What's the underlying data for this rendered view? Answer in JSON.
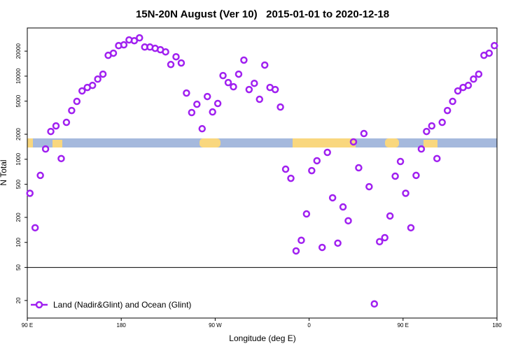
{
  "chart_data": {
    "type": "scatter",
    "title": "15N-20N August (Ver 10)   2015-01-01 to 2020-12-18",
    "x_label": "Longitude (deg E)",
    "y_label": "N Total",
    "x": [
      92.5,
      97.5,
      102.5,
      107.5,
      112.5,
      117.5,
      122.5,
      127.5,
      132.5,
      137.5,
      142.5,
      147.5,
      152.5,
      157.5,
      162.5,
      167.5,
      172.5,
      177.5,
      182.5,
      187.5,
      192.5,
      197.5,
      202.5,
      207.5,
      212.5,
      217.5,
      222.5,
      227.5,
      232.5,
      237.5,
      242.5,
      247.5,
      252.5,
      257.5,
      262.5,
      267.5,
      272.5,
      277.5,
      282.5,
      287.5,
      292.5,
      297.5,
      302.5,
      307.5,
      312.5,
      317.5,
      322.5,
      327.5,
      332.5,
      337.5,
      342.5,
      347.5,
      352.5,
      357.5,
      362.5,
      367.5,
      372.5,
      377.5,
      382.5,
      387.5,
      392.5,
      397.5,
      402.5,
      407.5,
      412.5,
      417.5,
      422.5,
      427.5,
      432.5,
      437.5,
      442.5,
      447.5,
      452.5,
      457.5,
      462.5,
      467.5,
      472.5,
      477.5,
      482.5,
      487.5,
      492.5,
      497.5,
      502.5,
      507.5,
      512.5,
      517.5,
      522.5,
      527.5,
      532.5,
      537.5
    ],
    "series": [
      {
        "name": "Land (Nadir&Glint) and Ocean (Glint)",
        "color": "#a020f0",
        "values": [
          390,
          150,
          640,
          1330,
          2160,
          2520,
          1020,
          2780,
          3860,
          4970,
          6640,
          7310,
          7740,
          9220,
          10570,
          17800,
          18900,
          23300,
          23800,
          27300,
          26700,
          28900,
          22400,
          22400,
          21600,
          20800,
          19600,
          13800,
          17100,
          14400,
          6260,
          3650,
          4590,
          2330,
          5690,
          3710,
          4690,
          10160,
          8370,
          7450,
          10570,
          15600,
          6900,
          8200,
          5270,
          13600,
          7310,
          6900,
          4250,
          760,
          590,
          79,
          106,
          220,
          730,
          960,
          87,
          1210,
          344,
          98,
          267,
          182,
          1620,
          790,
          2040,
          468,
          18.2,
          102,
          114,
          208,
          626,
          940,
          390,
          150,
          640,
          1330,
          2160,
          2520,
          1020,
          2780,
          3860,
          4970,
          6640,
          7310,
          7740,
          9220,
          10570,
          17800,
          18900,
          23300
        ]
      }
    ],
    "xlim": [
      90,
      540
    ],
    "xticks": [
      {
        "value": 90,
        "label": "90 E"
      },
      180,
      {
        "value": 270,
        "label": "90 W"
      },
      {
        "value": 360,
        "label": "0"
      },
      {
        "value": 450,
        "label": "90 E"
      },
      {
        "value": 540,
        "label": "180"
      }
    ],
    "ylim": [
      12.3,
      38000
    ],
    "y_scale": "log",
    "yticks": [
      20,
      50,
      100,
      200,
      500,
      1000,
      2000,
      5000,
      10000,
      20000
    ],
    "reference_line": 50,
    "legend": "lower left"
  }
}
